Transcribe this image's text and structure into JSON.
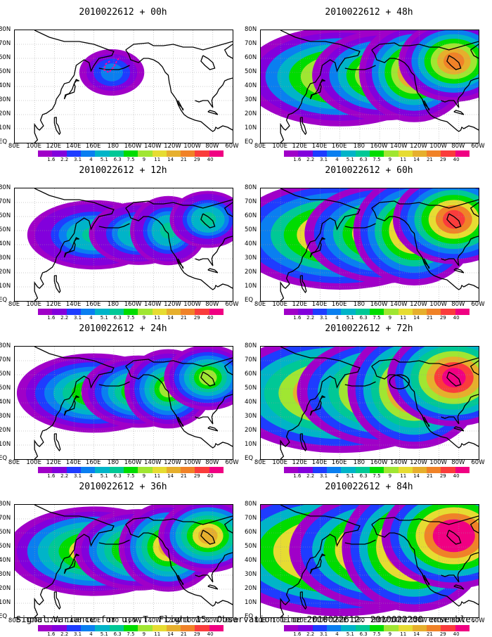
{
  "panels": [
    {
      "title": "2010022612 + 00h",
      "lead": "00h",
      "intensity": 0.9
    },
    {
      "title": "2010022612 + 12h",
      "lead": "12h",
      "intensity": 1.3
    },
    {
      "title": "2010022612 + 24h",
      "lead": "24h",
      "intensity": 1.8
    },
    {
      "title": "2010022612 + 36h",
      "lead": "36h",
      "intensity": 2.3
    },
    {
      "title": "2010022612 + 48h",
      "lead": "48h",
      "intensity": 2.6
    },
    {
      "title": "2010022612 + 60h",
      "lead": "60h",
      "intensity": 2.9
    },
    {
      "title": "2010022612 + 72h",
      "lead": "72h",
      "intensity": 3.2
    },
    {
      "title": "2010022612 + 84h",
      "lead": "84h",
      "intensity": 3.5
    }
  ],
  "lat_labels": [
    "80N",
    "70N",
    "60N",
    "50N",
    "40N",
    "30N",
    "20N",
    "10N",
    "EQ"
  ],
  "lon_labels": [
    "80E",
    "100E",
    "120E",
    "140E",
    "160E",
    "180",
    "160W",
    "140W",
    "120W",
    "100W",
    "80W",
    "60W"
  ],
  "colorbar": {
    "levels": [
      "1.6",
      "2.2",
      "3.1",
      "4",
      "5.1",
      "6.3",
      "7.5",
      "9",
      "11",
      "14",
      "21",
      "29",
      "40"
    ],
    "colors": [
      "#a000c8",
      "#8200dc",
      "#1e3cff",
      "#0a7ff0",
      "#00b4c8",
      "#00c896",
      "#00dc00",
      "#a0e632",
      "#e6dc32",
      "#e6af2d",
      "#f08228",
      "#fa3c3c",
      "#f00082"
    ]
  },
  "footer": "Signal Variance for u,v,T. Flight 15. Observation time 2010022612. 2010022200 ensemble."
}
